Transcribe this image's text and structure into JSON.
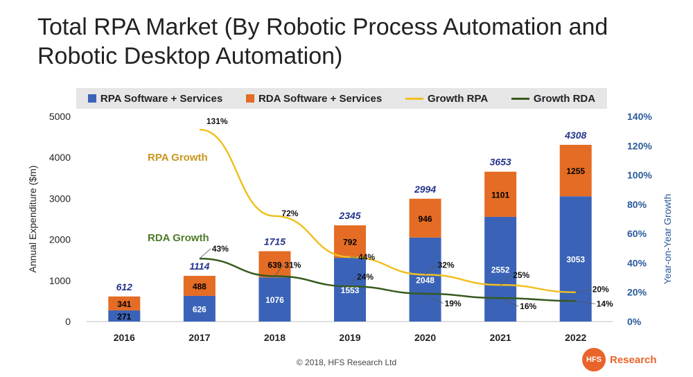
{
  "title": "Total RPA Market (By Robotic Process Automation and Robotic Desktop Automation)",
  "copyright": "© 2018, HFS Research Ltd",
  "logo": {
    "badge": "HFS",
    "text": "Research"
  },
  "colors": {
    "rpa": "#3a63b8",
    "rda": "#e46c24",
    "growth_rpa": "#f0c020",
    "growth_rda": "#375a1e",
    "total": "#24338c",
    "right_axis": "#2a5b9a",
    "rpa_growth_label": "#c8961e",
    "rda_growth_label": "#4e7a2a"
  },
  "chart_data": {
    "type": "bar",
    "stacked": true,
    "categories": [
      "2016",
      "2017",
      "2018",
      "2019",
      "2020",
      "2021",
      "2022"
    ],
    "series": [
      {
        "name": "RPA Software + Services",
        "values": [
          271,
          626,
          1076,
          1553,
          2048,
          2552,
          3053
        ]
      },
      {
        "name": "RDA Software + Services",
        "values": [
          341,
          488,
          639,
          792,
          946,
          1101,
          1255
        ]
      }
    ],
    "totals": [
      612,
      1114,
      1715,
      2345,
      2994,
      3653,
      4308
    ],
    "lines": [
      {
        "name": "Growth RPA",
        "axis": "right",
        "values": [
          null,
          131,
          72,
          44,
          32,
          25,
          20
        ],
        "labels": [
          "",
          "131%",
          "72%",
          "44%",
          "32%",
          "25%",
          "20%"
        ]
      },
      {
        "name": "Growth RDA",
        "axis": "right",
        "values": [
          null,
          43,
          31,
          24,
          19,
          16,
          14
        ],
        "labels": [
          "",
          "43%",
          "31%",
          "24%",
          "19%",
          "16%",
          "14%"
        ]
      }
    ],
    "annotations": {
      "rpa_growth": "RPA Growth",
      "rda_growth": "RDA Growth"
    },
    "ylabel": "Annual Expenditure ($m)",
    "y2label": "Year-on-Year Growth",
    "ylim": [
      0,
      5000
    ],
    "y2lim": [
      0,
      140
    ],
    "yticks": [
      "0",
      "1000",
      "2000",
      "3000",
      "4000",
      "5000"
    ],
    "y2ticks": [
      "0%",
      "20%",
      "40%",
      "60%",
      "80%",
      "100%",
      "120%",
      "140%"
    ],
    "legend_position": "top",
    "grid": false
  }
}
